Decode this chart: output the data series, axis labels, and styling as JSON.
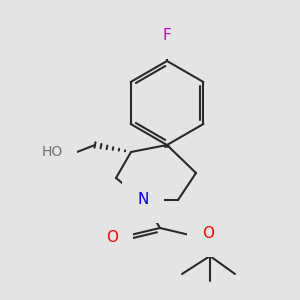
{
  "background_color": "#e4e4e4",
  "bond_color": "#2a2a2a",
  "atom_colors": {
    "F": "#cc00cc",
    "O": "#ff0000",
    "N": "#0000ee",
    "H_gray": "#707070",
    "C": "#2a2a2a"
  },
  "fig_width": 3.0,
  "fig_height": 3.0,
  "dpi": 100
}
